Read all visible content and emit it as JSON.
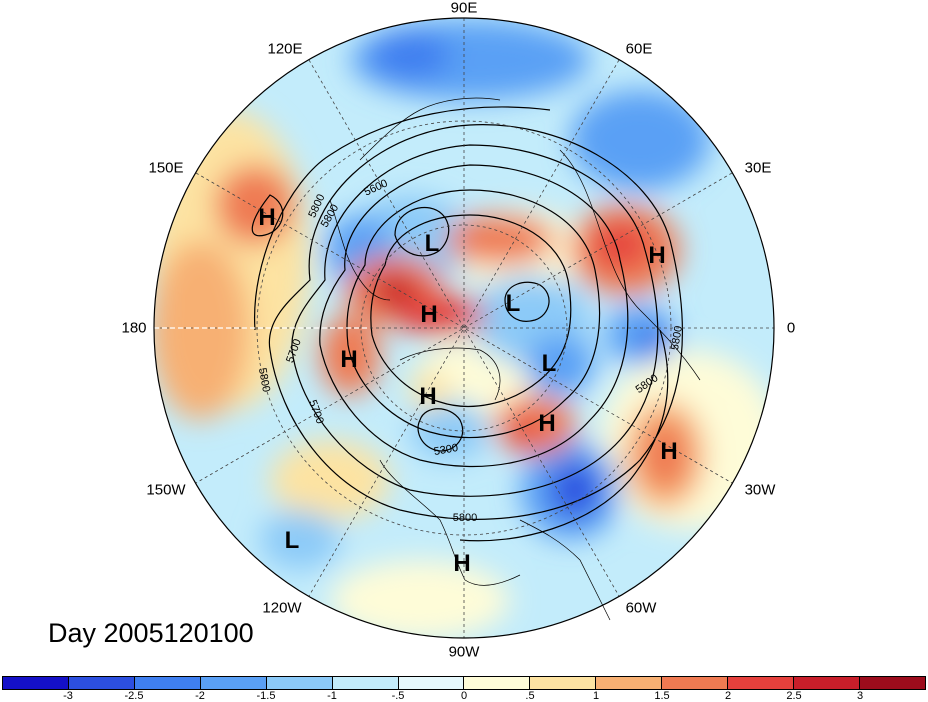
{
  "title": "Day 2005120100",
  "longitude_labels": [
    "90E",
    "60E",
    "30E",
    "0",
    "30W",
    "60W",
    "90W",
    "120W",
    "150W",
    "180",
    "150E",
    "120E"
  ],
  "pressure_systems": [
    {
      "type": "H"
    },
    {
      "type": "L"
    },
    {
      "type": "H"
    },
    {
      "type": "H"
    },
    {
      "type": "H"
    },
    {
      "type": "L"
    },
    {
      "type": "L"
    },
    {
      "type": "H"
    },
    {
      "type": "H"
    },
    {
      "type": "H"
    },
    {
      "type": "L"
    },
    {
      "type": "H"
    }
  ],
  "contour_labels": [
    "5800",
    "5600",
    "5700",
    "5800",
    "5700",
    "5800",
    "5800",
    "5800",
    "5300",
    "5800"
  ],
  "colorbar": {
    "ticks": [
      "-3",
      "-2.5",
      "-2",
      "-1.5",
      "-1",
      "-.5",
      "0",
      ".5",
      "1",
      "1.5",
      "2",
      "2.5",
      "3"
    ],
    "colors": [
      "#1410c8",
      "#2c4fe0",
      "#3f7ff0",
      "#5aa0f5",
      "#8ccaf8",
      "#c3ecfb",
      "#e6f8fc",
      "#fefcd8",
      "#fde3a2",
      "#f7b073",
      "#ef7a52",
      "#e5403c",
      "#c81e2a",
      "#9c0c1c"
    ]
  }
}
